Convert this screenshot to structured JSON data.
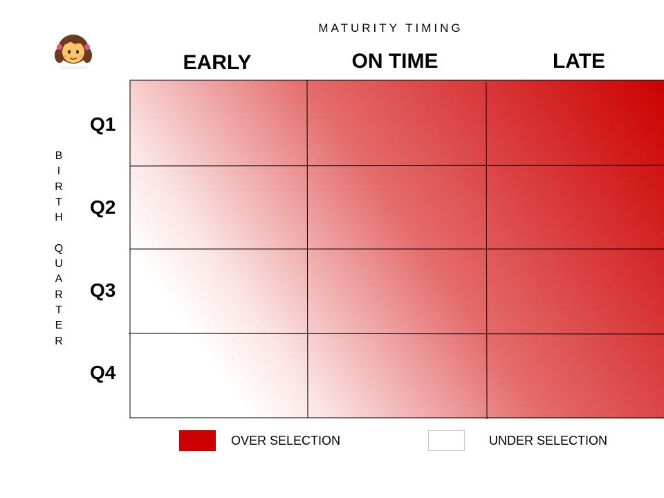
{
  "title": "MATURITY TIMING",
  "columns": [
    "EARLY",
    "ON TIME",
    "LATE"
  ],
  "side_label": "BIRTH QUARTER",
  "rows": [
    "Q1",
    "Q2",
    "Q3",
    "Q4"
  ],
  "legend": {
    "over_label": "OVER SELECTION",
    "under_label": "UNDER SELECTION"
  },
  "colors": {
    "over": "#cc0000",
    "under": "#ffffff",
    "grid": "#000000"
  },
  "icons": {
    "avatar": "girl-emoji-icon"
  }
}
